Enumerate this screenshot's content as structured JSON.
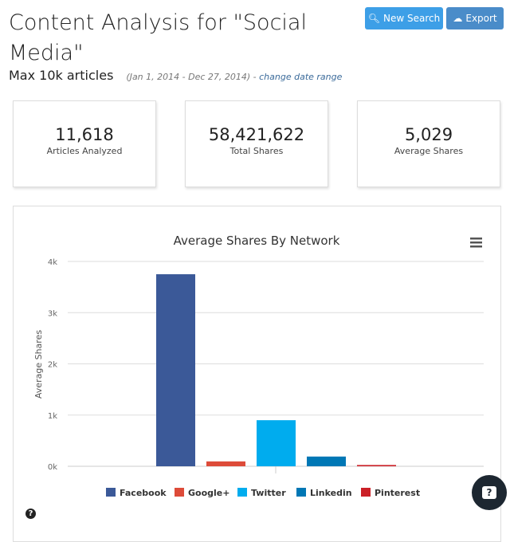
{
  "header": {
    "title": "Content Analysis for \"Social Media\"",
    "subtitle": "Max 10k articles",
    "date_range": "(Jan 1, 2014 - Dec 27, 2014) -",
    "change_link": "change date range"
  },
  "buttons": {
    "new_search": "New Search",
    "export": "Export"
  },
  "stats": [
    {
      "value": "11,618",
      "label": "Articles Analyzed"
    },
    {
      "value": "58,421,622",
      "label": "Total Shares"
    },
    {
      "value": "5,029",
      "label": "Average Shares"
    }
  ],
  "help": {
    "chat": "?",
    "info": "?"
  },
  "chart_data": {
    "type": "bar",
    "title": "Average Shares By Network",
    "ylabel": "Average Shares",
    "xlabel": "",
    "ylim": [
      0,
      4000
    ],
    "yticks": [
      "0k",
      "1k",
      "2k",
      "3k",
      "4k"
    ],
    "grid": true,
    "legend": "bottom",
    "series": [
      {
        "name": "Facebook",
        "value": 3750,
        "color": "#3b5998"
      },
      {
        "name": "Google+",
        "value": 95,
        "color": "#dd4b39"
      },
      {
        "name": "Twitter",
        "value": 900,
        "color": "#00acee"
      },
      {
        "name": "Linkedin",
        "value": 190,
        "color": "#0077b5"
      },
      {
        "name": "Pinterest",
        "value": 25,
        "color": "#cb2027"
      }
    ]
  }
}
